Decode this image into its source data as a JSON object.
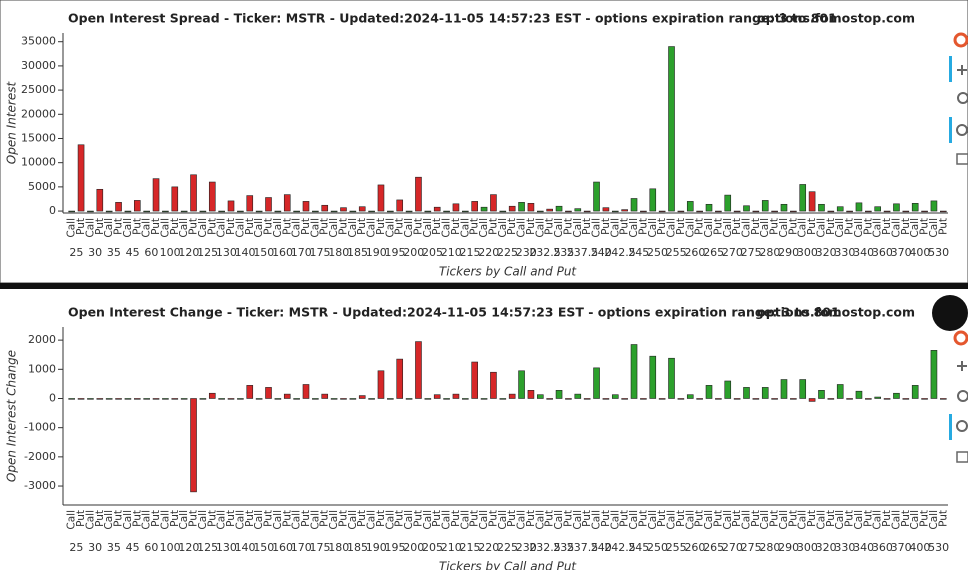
{
  "chart_data": [
    {
      "type": "bar",
      "title": "Open Interest Spread - Ticker: MSTR - Updated:2024-11-05 14:57:23 EST - options expiration range: 3 to 801",
      "watermark": "options.fomostop.com",
      "y_label": "Open Interest",
      "x_label": "Tickers by Call and Put",
      "categories": [
        "25",
        "30",
        "35",
        "45",
        "60",
        "100",
        "120",
        "125",
        "130",
        "140",
        "150",
        "160",
        "170",
        "175",
        "180",
        "185",
        "190",
        "195",
        "200",
        "205",
        "210",
        "215",
        "220",
        "225",
        "230",
        "232.5",
        "235",
        "237.5",
        "240",
        "242.5",
        "245",
        "250",
        "255",
        "260",
        "265",
        "270",
        "275",
        "280",
        "290",
        "300",
        "320",
        "330",
        "340",
        "360",
        "370",
        "400",
        "530"
      ],
      "subcategories": [
        "Call",
        "Put"
      ],
      "series": [
        {
          "name": "Call",
          "color": "#2ca02c",
          "values": [
            0,
            0,
            0,
            0,
            0,
            0,
            0,
            0,
            0,
            0,
            0,
            0,
            0,
            0,
            0,
            0,
            0,
            0,
            0,
            0,
            0,
            0,
            800,
            0,
            1800,
            0,
            1000,
            500,
            6000,
            0,
            2600,
            4600,
            34000,
            2000,
            1400,
            3300,
            1100,
            2200,
            1400,
            5500,
            1400,
            900,
            1700,
            900,
            1500,
            1600,
            2100
          ]
        },
        {
          "name": "Put",
          "color": "#d62728",
          "values": [
            13700,
            4500,
            1800,
            2200,
            6700,
            5000,
            7500,
            6000,
            2100,
            3200,
            2800,
            3400,
            2000,
            1200,
            700,
            900,
            5400,
            2300,
            7000,
            800,
            1500,
            2000,
            3400,
            1000,
            1600,
            400,
            0,
            0,
            700,
            300,
            0,
            0,
            0,
            0,
            0,
            0,
            0,
            0,
            0,
            4000,
            0,
            0,
            0,
            0,
            0,
            0,
            0
          ]
        }
      ],
      "ylim": [
        -400,
        36800
      ],
      "yticks": [
        0,
        5000,
        10000,
        15000,
        20000,
        25000,
        30000,
        35000
      ]
    },
    {
      "type": "bar",
      "title": "Open Interest Change - Ticker: MSTR - Updated:2024-11-05 14:57:23 EST - options expiration range: 3 to 801",
      "watermark": "options.fomostop.com",
      "y_label": "Open Interest Change",
      "x_label": "Tickers by Call and Put",
      "categories": [
        "25",
        "30",
        "35",
        "45",
        "60",
        "100",
        "120",
        "125",
        "130",
        "140",
        "150",
        "160",
        "170",
        "175",
        "180",
        "185",
        "190",
        "195",
        "200",
        "205",
        "210",
        "215",
        "220",
        "225",
        "230",
        "232.5",
        "235",
        "237.5",
        "240",
        "242.5",
        "245",
        "250",
        "255",
        "260",
        "265",
        "270",
        "275",
        "280",
        "290",
        "300",
        "320",
        "330",
        "340",
        "360",
        "370",
        "400",
        "530"
      ],
      "subcategories": [
        "Call",
        "Put"
      ],
      "series": [
        {
          "name": "Call",
          "color": "#2ca02c",
          "values": [
            0,
            0,
            0,
            0,
            0,
            0,
            0,
            0,
            0,
            0,
            0,
            0,
            0,
            0,
            0,
            0,
            0,
            0,
            0,
            0,
            0,
            0,
            0,
            0,
            950,
            130,
            280,
            150,
            1050,
            130,
            1850,
            1450,
            1380,
            130,
            450,
            600,
            380,
            380,
            650,
            650,
            280,
            480,
            250,
            50,
            180,
            450,
            1650
          ]
        },
        {
          "name": "Put",
          "color": "#d62728",
          "values": [
            0,
            0,
            0,
            0,
            0,
            0,
            -3200,
            180,
            0,
            450,
            380,
            150,
            480,
            150,
            0,
            100,
            950,
            1350,
            1950,
            130,
            150,
            1250,
            900,
            150,
            280,
            0,
            0,
            0,
            0,
            0,
            0,
            0,
            0,
            0,
            0,
            0,
            0,
            0,
            0,
            -100,
            0,
            0,
            0,
            0,
            0,
            0,
            0
          ]
        }
      ],
      "ylim": [
        -3650,
        2450
      ],
      "yticks": [
        -3000,
        -2000,
        -1000,
        0,
        1000,
        2000
      ]
    }
  ]
}
